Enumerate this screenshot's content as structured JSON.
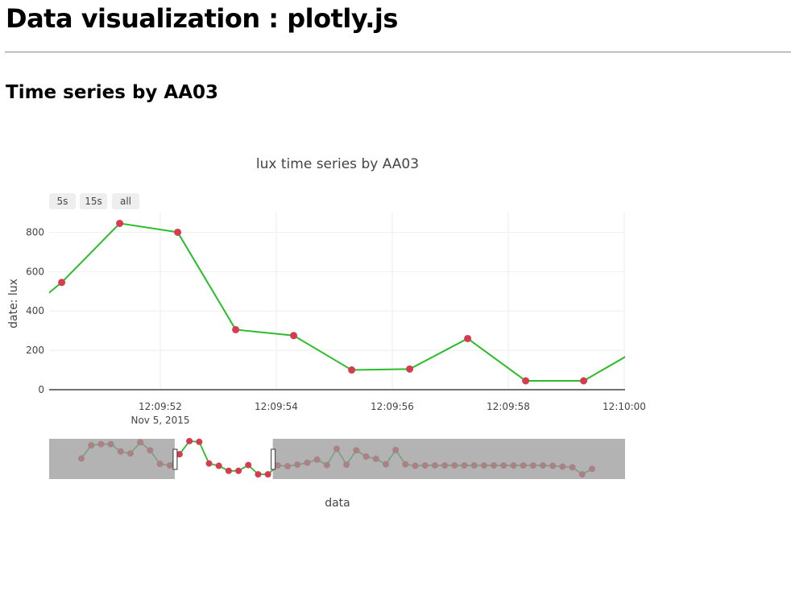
{
  "page": {
    "heading": "Data visualization : plotly.js",
    "subheading": "Time series by AA03"
  },
  "colors": {
    "line": "#2bbc2b",
    "marker": "#d63b4f",
    "marker_dim": "#8a2030",
    "rangeslider_mask": "#999999",
    "gridline": "#eeeeee"
  },
  "chart_data": {
    "type": "line",
    "title": "lux time series by AA03",
    "xlabel": "data",
    "ylabel": "date: lux",
    "x_date_label": "Nov 5, 2015",
    "ylim": [
      0,
      900
    ],
    "yticks": [
      0,
      200,
      400,
      600,
      800
    ],
    "xlim": [
      0,
      10
    ],
    "xticks": [
      {
        "v": 2,
        "label": "12:09:52"
      },
      {
        "v": 4,
        "label": "12:09:54"
      },
      {
        "v": 6,
        "label": "12:09:56"
      },
      {
        "v": 8,
        "label": "12:09:58"
      },
      {
        "v": 10,
        "label": "12:10:00"
      }
    ],
    "range_buttons": [
      "5s",
      "15s",
      "all"
    ],
    "series": [
      {
        "x": [
          -0.7,
          0.3,
          1.3,
          2.3,
          3.3,
          4.3,
          5.3,
          6.3,
          7.3,
          8.3,
          9.3,
          10.3
        ],
        "y": [
          305,
          545,
          845,
          800,
          305,
          275,
          100,
          105,
          260,
          45,
          45,
          215
        ]
      }
    ],
    "rangeslider": {
      "ylim": [
        0,
        1000
      ],
      "selection_index": [
        10,
        19
      ],
      "values": [
        470,
        810,
        840,
        840,
        650,
        600,
        890,
        680,
        330,
        290,
        580,
        920,
        900,
        340,
        280,
        150,
        150,
        300,
        60,
        60,
        290,
        270,
        310,
        360,
        440,
        300,
        720,
        310,
        680,
        520,
        460,
        320,
        690,
        320,
        280,
        290,
        290,
        290,
        290,
        290,
        290,
        290,
        290,
        290,
        290,
        290,
        290,
        290,
        280,
        260,
        240,
        60,
        200
      ]
    }
  }
}
